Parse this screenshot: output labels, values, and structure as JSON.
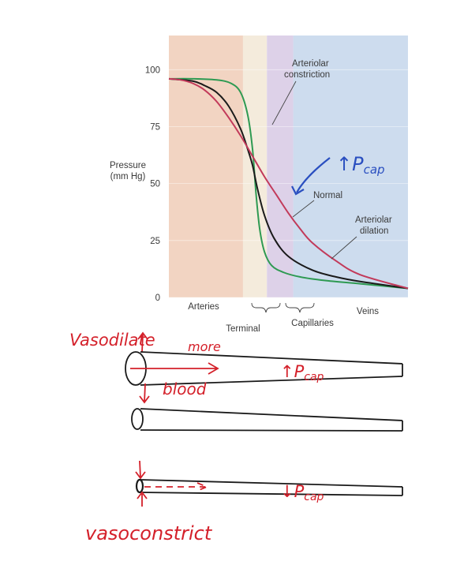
{
  "chart_data": {
    "type": "line",
    "title": "",
    "ylabel_line1": "Pressure",
    "ylabel_line2": "(mm Hg)",
    "xlabel": "",
    "ylim": [
      0,
      115
    ],
    "yticks": [
      0,
      25,
      50,
      75,
      100
    ],
    "xlim": [
      0,
      10
    ],
    "regions": [
      {
        "label": "Arteries",
        "x": [
          0,
          3.1
        ],
        "color": "#f2d4c2"
      },
      {
        "label": "Terminal",
        "x": [
          3.1,
          4.1
        ],
        "color": "#f4ebdc"
      },
      {
        "label": "Capillaries",
        "x": [
          4.1,
          5.2
        ],
        "color": "#ddd1e8"
      },
      {
        "label": "Veins",
        "x": [
          5.2,
          10
        ],
        "color": "#cddcee"
      }
    ],
    "series": [
      {
        "name": "Arteriolar constriction",
        "color": "#2e9a52",
        "x": [
          0,
          1,
          2,
          2.6,
          3.0,
          3.3,
          3.5,
          3.65,
          3.8,
          4.0,
          4.3,
          4.8,
          5.5,
          6.5,
          8,
          10
        ],
        "y": [
          96,
          96,
          95.5,
          94,
          90,
          80,
          65,
          45,
          30,
          20,
          14,
          11,
          9,
          7.5,
          6,
          4
        ]
      },
      {
        "name": "Normal",
        "color": "#1a1a1a",
        "x": [
          0,
          1,
          1.5,
          2.0,
          2.5,
          3.0,
          3.3,
          3.5,
          3.7,
          4.0,
          4.4,
          5.0,
          6.0,
          7,
          8,
          10
        ],
        "y": [
          96,
          95,
          93,
          90,
          84,
          74,
          65,
          58,
          48,
          36,
          26,
          18,
          12,
          9,
          7,
          4
        ]
      },
      {
        "name": "Arteriolar dilation",
        "color": "#c23a5a",
        "x": [
          0,
          0.5,
          1.0,
          1.5,
          2.0,
          2.5,
          3.0,
          3.5,
          4.0,
          4.5,
          5.0,
          5.5,
          6.0,
          7.0,
          8.0,
          10
        ],
        "y": [
          96,
          95.5,
          94,
          91,
          86,
          79,
          71,
          62,
          53,
          45,
          37,
          30,
          24,
          16,
          10,
          4
        ]
      }
    ],
    "labels": {
      "constriction_line1": "Arteriolar",
      "constriction_line2": "constriction",
      "normal": "Normal",
      "dilation_line1": "Arteriolar",
      "dilation_line2": "dilation"
    }
  },
  "annotations": {
    "pcap_up_chart": "↑P",
    "pcap_sub": "cap",
    "vasodilate": "Vasodilate",
    "more": "more",
    "blood": "blood",
    "pcap_up_tube": "↑P",
    "pcap_down_tube": "↓P",
    "vasoconstrict": "vasoconstrict"
  },
  "colors": {
    "ink": "#d4202a",
    "tube": "#1a1a1a"
  }
}
